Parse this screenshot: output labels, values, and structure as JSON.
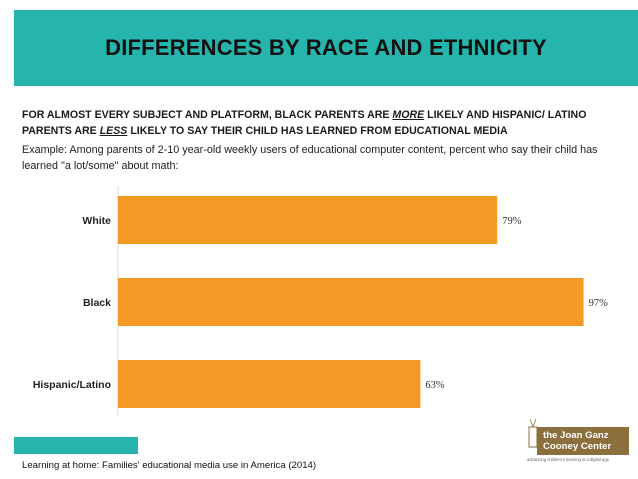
{
  "colors": {
    "teal": "#26b5ac",
    "orange": "#f59a26",
    "logo": "#8b6f3c"
  },
  "header": {
    "title": "DIFFERENCES BY RACE AND ETHNICITY"
  },
  "headline": {
    "part1": "FOR ALMOST EVERY SUBJECT AND PLATFORM, BLACK PARENTS ARE ",
    "more": "MORE",
    "part2": " LIKELY AND HISPANIC/ LATINO PARENTS ARE ",
    "less": "LESS",
    "part3": " LIKELY TO SAY THEIR CHILD HAS LEARNED FROM EDUCATIONAL MEDIA"
  },
  "example": "Example: Among parents of 2-10 year-old weekly users of educational computer content, percent who say their child has learned \"a lot/some\" about math:",
  "chart_data": {
    "type": "bar",
    "orientation": "horizontal",
    "categories": [
      "White",
      "Black",
      "Hispanic/Latino"
    ],
    "values": [
      79,
      97,
      63
    ],
    "value_labels": [
      "79%",
      "97%",
      "63%"
    ],
    "xlim": [
      0,
      100
    ],
    "title": "",
    "xlabel": "",
    "ylabel": ""
  },
  "footer": {
    "source": "Learning at home: Families' educational media use in America (2014)"
  },
  "logo": {
    "line1": "the Joan Ganz",
    "line2": "Cooney Center",
    "tagline": "advancing children's learning in a digital age"
  }
}
